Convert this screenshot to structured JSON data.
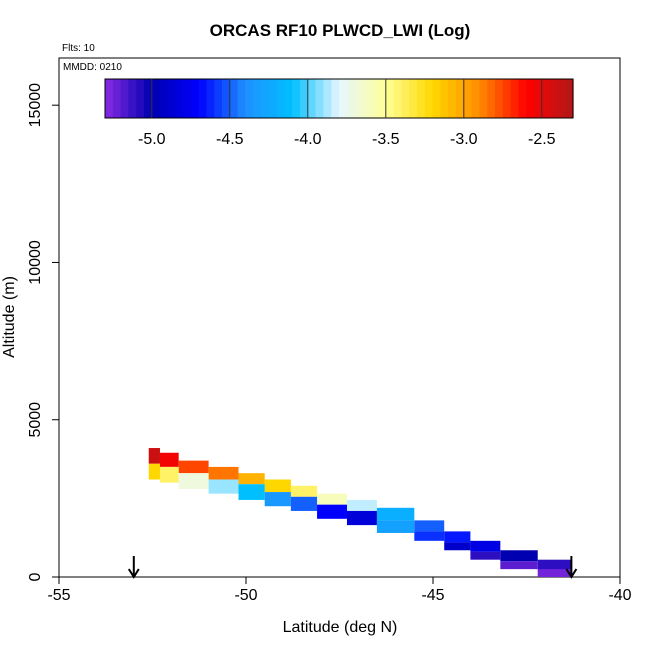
{
  "chart_data": {
    "type": "heatmap",
    "title": "ORCAS RF10 PLWCD_LWI (Log)",
    "flights_label": "Flts: 10",
    "date_label": "MMDD: 0210",
    "xlabel": "Latitude (deg N)",
    "ylabel": "Altitude (m)",
    "xlim": [
      -55,
      -40
    ],
    "ylim": [
      0,
      16500
    ],
    "xticks": [
      -55,
      -50,
      -45,
      -40
    ],
    "yticks": [
      0,
      5000,
      10000,
      15000
    ],
    "colorbar": {
      "range": [
        -5.3,
        -2.3
      ],
      "ticks": [
        -5.0,
        -4.5,
        -4.0,
        -3.5,
        -3.0,
        -2.5
      ],
      "tick_labels": [
        "-5.0",
        "-4.5",
        "-4.0",
        "-3.5",
        "-3.0",
        "-2.5"
      ],
      "colors": [
        "#8a2be2",
        "#0000b0",
        "#0000ff",
        "#1e90ff",
        "#00bfff",
        "#e6f6ff",
        "#ffff99",
        "#ffd700",
        "#ff8c00",
        "#ff0000",
        "#b21818"
      ]
    },
    "markers": [
      {
        "type": "arrow-down",
        "lat": -53.0
      },
      {
        "type": "arrow-down",
        "lat": -41.3
      }
    ],
    "cells": [
      {
        "lat0": -52.6,
        "lat1": -52.3,
        "alt0": 3600,
        "alt1": 4100,
        "v": -2.4
      },
      {
        "lat0": -52.3,
        "lat1": -51.8,
        "alt0": 3500,
        "alt1": 3950,
        "v": -2.55
      },
      {
        "lat0": -51.8,
        "lat1": -51.0,
        "alt0": 3300,
        "alt1": 3700,
        "v": -2.75
      },
      {
        "lat0": -51.0,
        "lat1": -50.2,
        "alt0": 3100,
        "alt1": 3500,
        "v": -2.85
      },
      {
        "lat0": -50.2,
        "lat1": -49.5,
        "alt0": 2950,
        "alt1": 3300,
        "v": -3.05
      },
      {
        "lat0": -49.5,
        "lat1": -48.8,
        "alt0": 2700,
        "alt1": 3100,
        "v": -3.2
      },
      {
        "lat0": -48.8,
        "lat1": -48.1,
        "alt0": 2550,
        "alt1": 2900,
        "v": -3.4
      },
      {
        "lat0": -48.1,
        "lat1": -47.3,
        "alt0": 2300,
        "alt1": 2650,
        "v": -3.6
      },
      {
        "lat0": -47.3,
        "lat1": -46.5,
        "alt0": 2100,
        "alt1": 2450,
        "v": -3.85
      },
      {
        "lat0": -46.5,
        "lat1": -45.5,
        "alt0": 1800,
        "alt1": 2200,
        "v": -4.2
      },
      {
        "lat0": -45.5,
        "lat1": -44.7,
        "alt0": 1450,
        "alt1": 1800,
        "v": -4.5
      },
      {
        "lat0": -44.7,
        "lat1": -44.0,
        "alt0": 1100,
        "alt1": 1450,
        "v": -4.65
      },
      {
        "lat0": -44.0,
        "lat1": -43.2,
        "alt0": 800,
        "alt1": 1150,
        "v": -4.8
      },
      {
        "lat0": -43.2,
        "lat1": -42.2,
        "alt0": 500,
        "alt1": 850,
        "v": -5.0
      },
      {
        "lat0": -42.2,
        "lat1": -41.3,
        "alt0": 200,
        "alt1": 550,
        "v": -5.1
      },
      {
        "lat0": -52.6,
        "lat1": -52.3,
        "alt0": 3100,
        "alt1": 3600,
        "v": -3.2
      },
      {
        "lat0": -52.3,
        "lat1": -51.8,
        "alt0": 3000,
        "alt1": 3500,
        "v": -3.4
      },
      {
        "lat0": -51.8,
        "lat1": -51.0,
        "alt0": 2800,
        "alt1": 3300,
        "v": -3.7
      },
      {
        "lat0": -51.0,
        "lat1": -50.2,
        "alt0": 2650,
        "alt1": 3100,
        "v": -3.9
      },
      {
        "lat0": -50.2,
        "lat1": -49.5,
        "alt0": 2450,
        "alt1": 2950,
        "v": -4.1
      },
      {
        "lat0": -49.5,
        "lat1": -48.8,
        "alt0": 2250,
        "alt1": 2700,
        "v": -4.35
      },
      {
        "lat0": -48.8,
        "lat1": -48.1,
        "alt0": 2100,
        "alt1": 2550,
        "v": -4.5
      },
      {
        "lat0": -48.1,
        "lat1": -47.3,
        "alt0": 1850,
        "alt1": 2300,
        "v": -4.7
      },
      {
        "lat0": -47.3,
        "lat1": -46.5,
        "alt0": 1650,
        "alt1": 2100,
        "v": -4.85
      },
      {
        "lat0": -46.5,
        "lat1": -45.5,
        "alt0": 1400,
        "alt1": 1800,
        "v": -4.3
      },
      {
        "lat0": -45.5,
        "lat1": -44.7,
        "alt0": 1150,
        "alt1": 1450,
        "v": -4.6
      },
      {
        "lat0": -44.7,
        "lat1": -44.0,
        "alt0": 850,
        "alt1": 1100,
        "v": -4.9
      },
      {
        "lat0": -44.0,
        "lat1": -43.2,
        "alt0": 550,
        "alt1": 800,
        "v": -5.1
      },
      {
        "lat0": -43.2,
        "lat1": -42.2,
        "alt0": 250,
        "alt1": 500,
        "v": -5.2
      },
      {
        "lat0": -42.2,
        "lat1": -41.3,
        "alt0": 0,
        "alt1": 250,
        "v": -5.25
      }
    ]
  }
}
